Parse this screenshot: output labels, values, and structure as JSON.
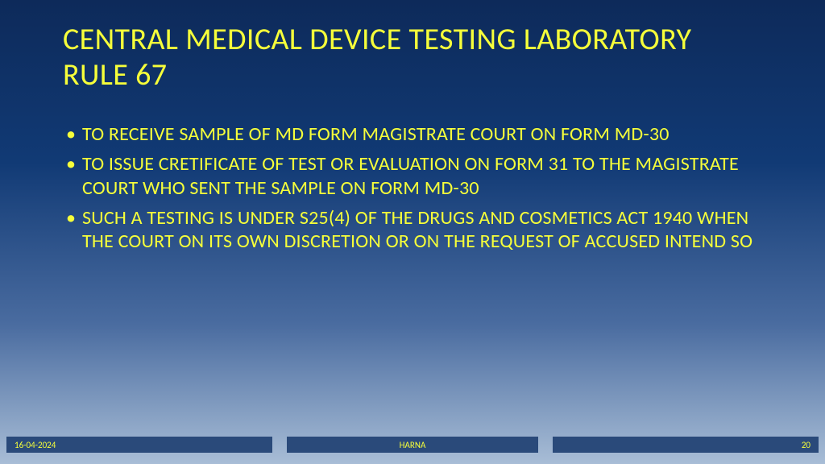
{
  "colors": {
    "text": "#f6ff3a",
    "footer_bg": "#2a4a7a",
    "bg_gradient_top": "#0d2a5a",
    "bg_gradient_mid1": "#113a75",
    "bg_gradient_mid2": "#4a6ca0",
    "bg_gradient_bottom": "#a8bdd6"
  },
  "typography": {
    "title_fontsize": 38,
    "bullet_fontsize": 24,
    "footer_fontsize": 11,
    "font_family": "Calibri"
  },
  "title": "CENTRAL MEDICAL DEVICE TESTING LABORATORY RULE 67",
  "bullets": [
    "TO RECEIVE SAMPLE OF MD FORM MAGISTRATE  COURT ON FORM MD-30",
    "TO ISSUE CRETIFICATE OF TEST OR EVALUATION ON FORM 31 TO THE MAGISTRATE COURT WHO SENT THE SAMPLE ON FORM  MD-30",
    "SUCH A TESTING IS UNDER S25(4) OF THE DRUGS AND COSMETICS ACT 1940 WHEN THE COURT ON ITS OWN DISCRETION OR ON THE REQUEST OF ACCUSED INTEND SO"
  ],
  "footer": {
    "date": "16-04-2024",
    "author": "HARNA",
    "page": "20"
  }
}
